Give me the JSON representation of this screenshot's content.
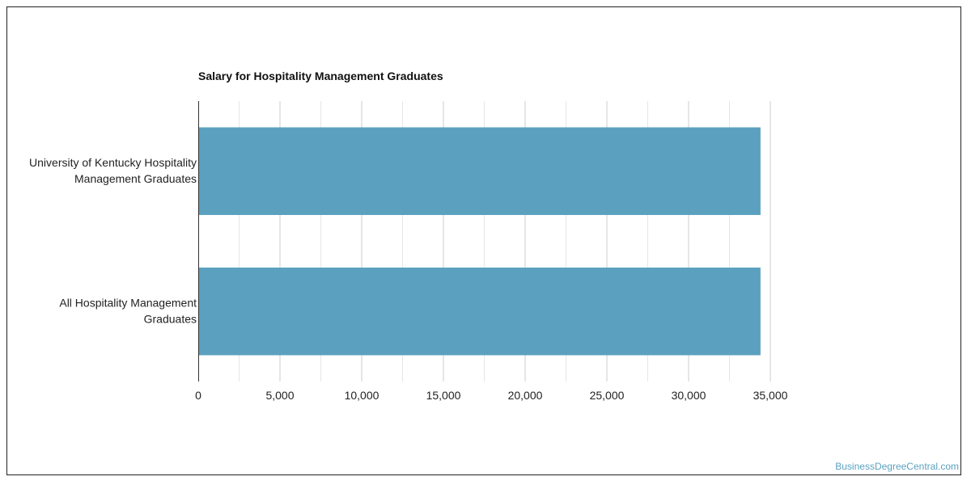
{
  "chart_data": {
    "type": "bar",
    "orientation": "horizontal",
    "title": "Salary for Hospitality Management Graduates",
    "categories": [
      [
        "University of Kentucky Hospitality",
        "Management Graduates"
      ],
      [
        "All Hospitality Management",
        "Graduates"
      ]
    ],
    "values": [
      34400,
      34400
    ],
    "xlim": [
      0,
      35000
    ],
    "ticks": [
      0,
      5000,
      10000,
      15000,
      20000,
      25000,
      30000,
      35000
    ],
    "tick_labels": [
      "0",
      "5,000",
      "10,000",
      "15,000",
      "20,000",
      "25,000",
      "30,000",
      "35,000"
    ],
    "grid": true,
    "bar_color": "#5ba1bf",
    "grid_color": "#cccccc",
    "minor_grid_color": "#e6e6e6"
  },
  "watermark": "BusinessDegreeCentral.com"
}
